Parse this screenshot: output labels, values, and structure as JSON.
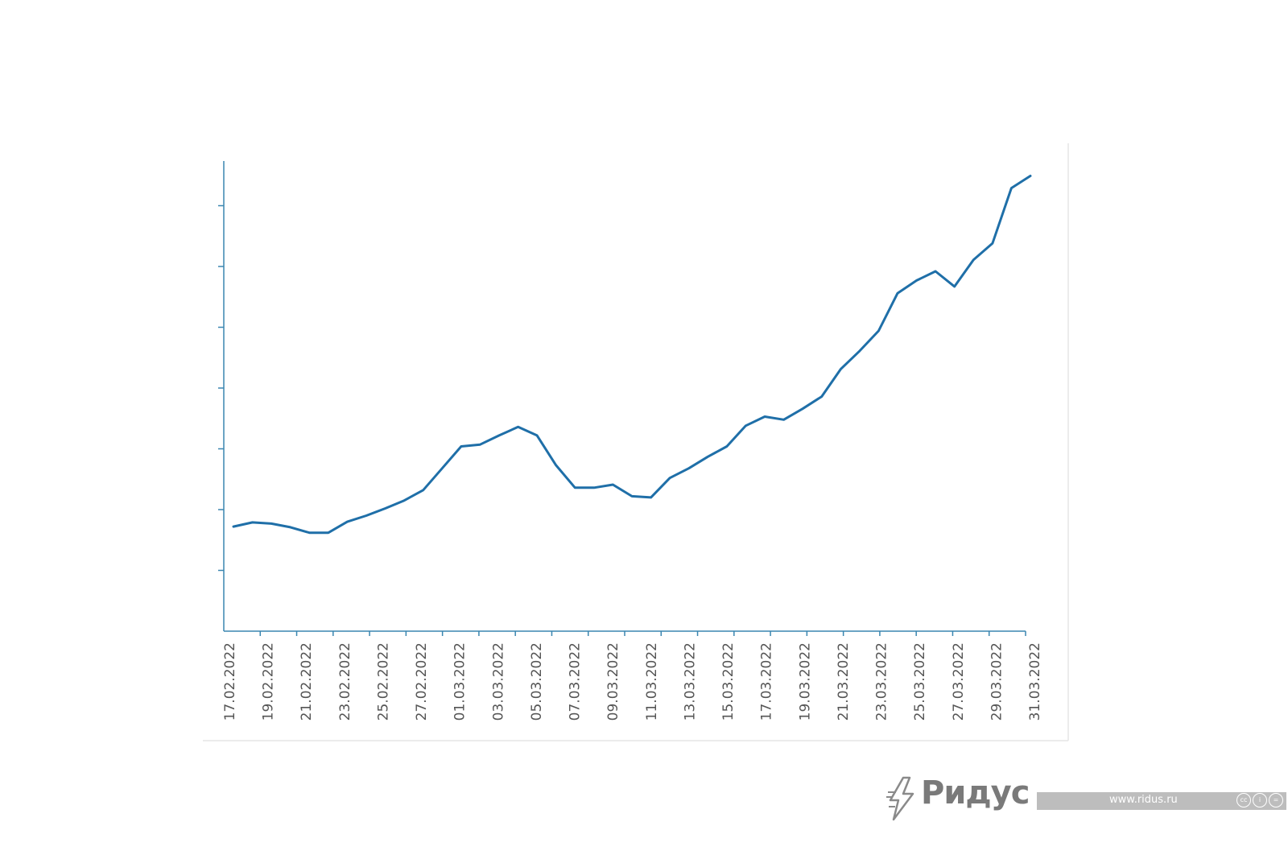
{
  "chart_data": {
    "type": "line",
    "title": "",
    "xlabel": "",
    "ylabel": "",
    "grid": false,
    "legend": "none",
    "x_tick_labels": [
      "17.02.2022",
      "19.02.2022",
      "21.02.2022",
      "23.02.2022",
      "25.02.2022",
      "27.02.2022",
      "01.03.2022",
      "03.03.2022",
      "05.03.2022",
      "07.03.2022",
      "09.03.2022",
      "11.03.2022",
      "13.03.2022",
      "15.03.2022",
      "17.03.2022",
      "19.03.2022",
      "21.03.2022",
      "23.03.2022",
      "25.03.2022",
      "27.03.2022",
      "29.03.2022",
      "31.03.2022"
    ],
    "x": [
      "17.02.2022",
      "18.02.2022",
      "19.02.2022",
      "20.02.2022",
      "21.02.2022",
      "22.02.2022",
      "23.02.2022",
      "24.02.2022",
      "25.02.2022",
      "26.02.2022",
      "27.02.2022",
      "28.02.2022",
      "01.03.2022",
      "02.03.2022",
      "03.03.2022",
      "04.03.2022",
      "05.03.2022",
      "06.03.2022",
      "07.03.2022",
      "08.03.2022",
      "09.03.2022",
      "10.03.2022",
      "11.03.2022",
      "12.03.2022",
      "13.03.2022",
      "14.03.2022",
      "15.03.2022",
      "16.03.2022",
      "17.03.2022",
      "18.03.2022",
      "19.03.2022",
      "20.03.2022",
      "21.03.2022",
      "22.03.2022",
      "23.03.2022",
      "24.03.2022",
      "25.03.2022",
      "26.03.2022",
      "27.03.2022",
      "28.03.2022",
      "29.03.2022",
      "30.03.2022",
      "31.03.2022"
    ],
    "series": [
      {
        "color": "#1f6fa8",
        "values": [
          1.72,
          1.79,
          1.77,
          1.71,
          1.62,
          1.62,
          1.8,
          1.9,
          2.02,
          2.15,
          2.32,
          2.68,
          3.04,
          3.07,
          3.22,
          3.36,
          3.22,
          2.73,
          2.36,
          2.36,
          2.41,
          2.22,
          2.2,
          2.52,
          2.68,
          2.87,
          3.04,
          3.38,
          3.53,
          3.48,
          3.66,
          3.86,
          4.31,
          4.61,
          4.94,
          5.56,
          5.77,
          5.92,
          5.67,
          6.11,
          6.38,
          7.29,
          7.49
        ]
      }
    ],
    "ylim": [
      0,
      8
    ],
    "y_tick_labels": []
  },
  "watermark": {
    "brand": "Ридус",
    "url": "www.ridus.ru",
    "license_icons": [
      "cc",
      "by",
      "nd"
    ]
  }
}
